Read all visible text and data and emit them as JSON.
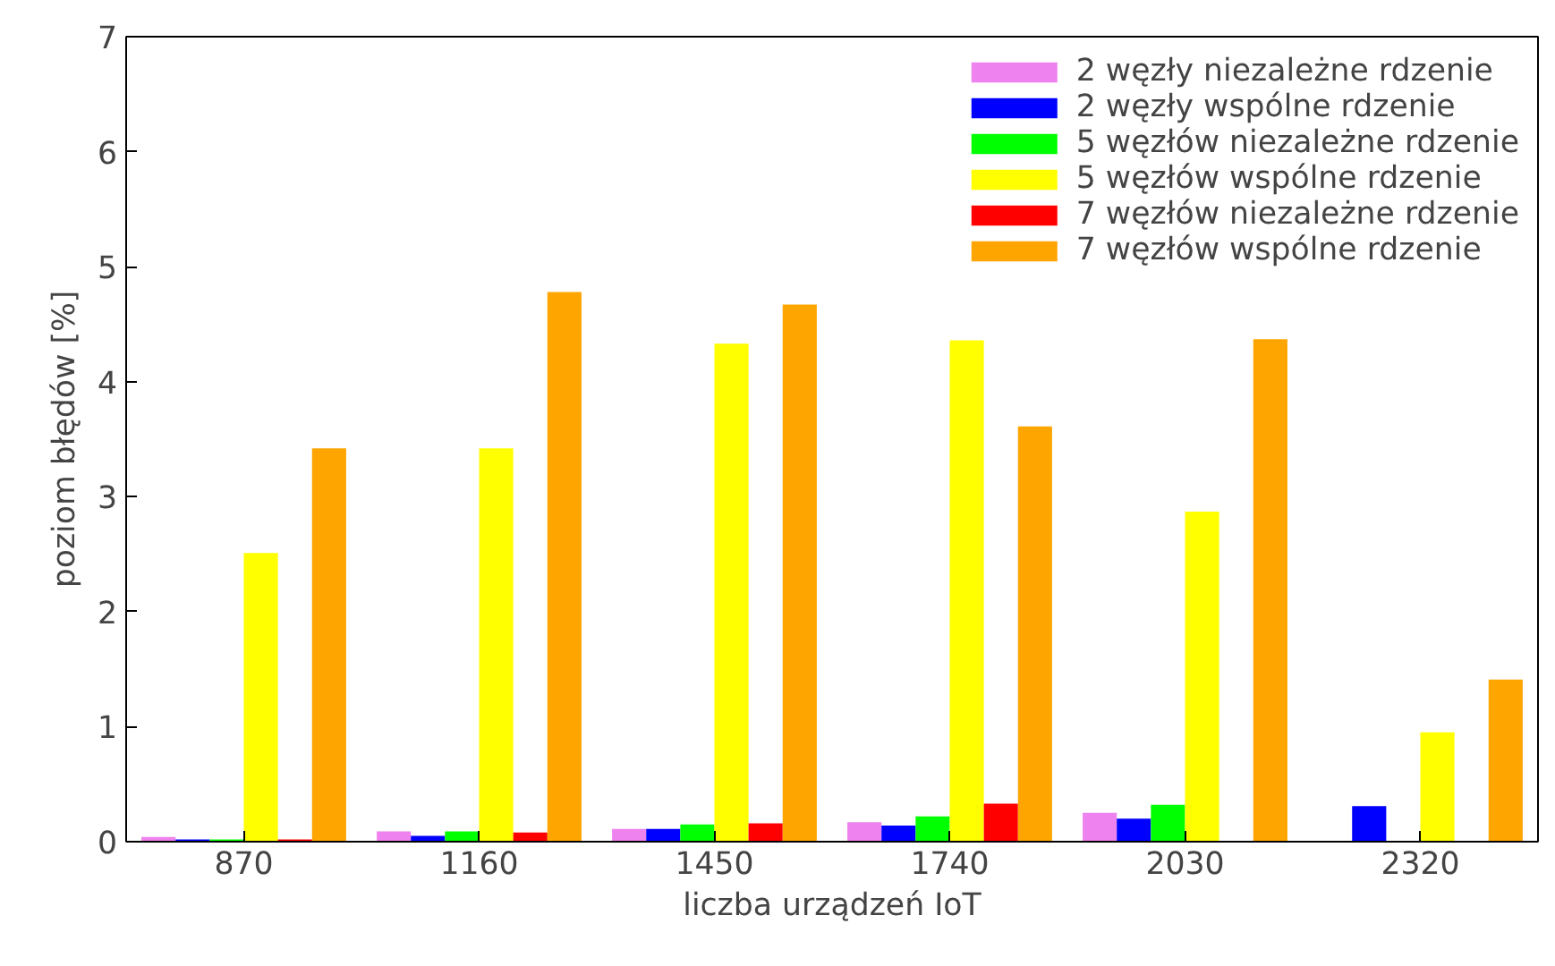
{
  "chart_data": {
    "type": "bar",
    "xlabel": "liczba urządzeń IoT",
    "ylabel": "poziom błędów [%]",
    "categories": [
      "870",
      "1160",
      "1450",
      "1740",
      "2030",
      "2320"
    ],
    "ylim": [
      0,
      7
    ],
    "yticks": [
      0,
      1,
      2,
      3,
      4,
      5,
      6,
      7
    ],
    "grid": false,
    "legend": "top right",
    "series": [
      {
        "name": "2 węzły niezależne rdzenie",
        "color": "#ee82ee",
        "values": [
          0.04,
          0.09,
          0.11,
          0.17,
          0.25,
          null
        ]
      },
      {
        "name": "2 węzły wspólne rdzenie",
        "color": "#0000ff",
        "values": [
          0.02,
          0.05,
          0.11,
          0.14,
          0.2,
          0.31
        ]
      },
      {
        "name": "5 węzłów niezależne rdzenie",
        "color": "#00ff00",
        "values": [
          0.02,
          0.09,
          0.15,
          0.22,
          0.32,
          null
        ]
      },
      {
        "name": "5 węzłów wspólne rdzenie",
        "color": "#ffff00",
        "values": [
          2.51,
          3.42,
          4.33,
          4.36,
          2.87,
          0.95
        ]
      },
      {
        "name": "7 węzłów niezależne rdzenie",
        "color": "#ff0000",
        "values": [
          0.02,
          0.08,
          0.16,
          0.33,
          null,
          null
        ]
      },
      {
        "name": "7 węzłów wspólne rdzenie",
        "color": "#ffa500",
        "values": [
          3.42,
          4.78,
          4.67,
          3.61,
          4.37,
          1.41
        ]
      }
    ]
  }
}
